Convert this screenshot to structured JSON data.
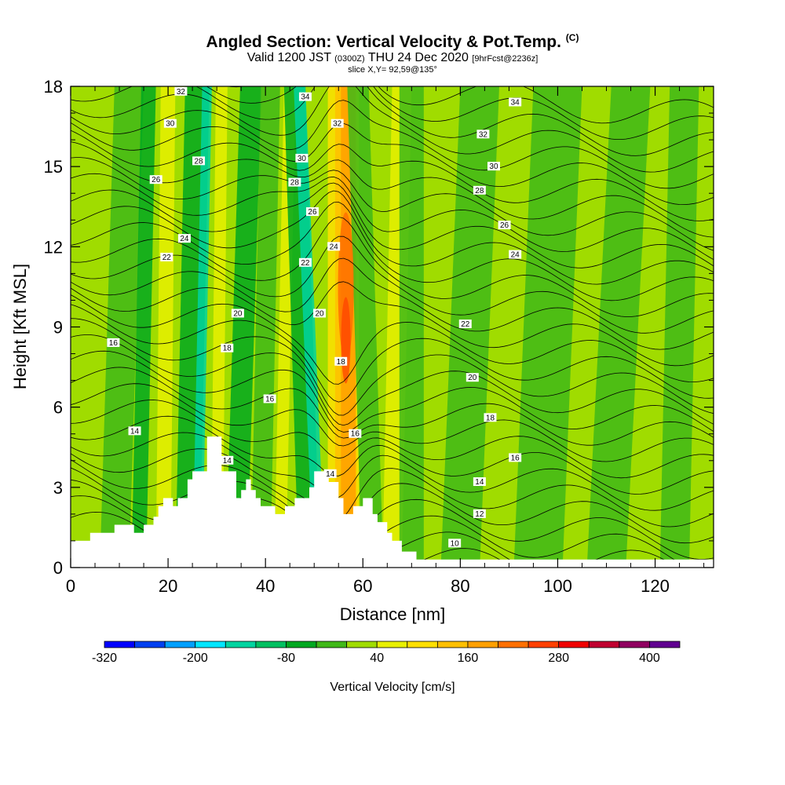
{
  "title": {
    "main": "Angled Section: Vertical Velocity & Pot.Temp.",
    "copyright": "(C)",
    "valid_prefix": "Valid 1200 JST",
    "valid_utc": "(0300Z)",
    "valid_date": "THU 24 Dec 2020",
    "forecast": "[9hrFcst@2236z]",
    "slice": "slice X,Y= 92,59@135°"
  },
  "chart_data": {
    "type": "heatmap",
    "xlabel": "Distance [nm]",
    "ylabel": "Height [Kft MSL]",
    "xlim": [
      0,
      132
    ],
    "ylim": [
      0,
      18
    ],
    "x_ticks": [
      "0",
      "20",
      "40",
      "60",
      "80",
      "100",
      "120"
    ],
    "y_ticks": [
      "0",
      "3",
      "6",
      "9",
      "12",
      "15",
      "18"
    ],
    "x_tick_values": [
      0,
      20,
      40,
      60,
      80,
      100,
      120
    ],
    "y_tick_values": [
      0,
      3,
      6,
      9,
      12,
      15,
      18
    ],
    "colorbar": {
      "label": "Vertical Velocity [cm/s]",
      "tick_labels": [
        "-320",
        "-200",
        "-80",
        "40",
        "160",
        "280",
        "400"
      ],
      "tick_values": [
        -320,
        -200,
        -80,
        40,
        160,
        280,
        400
      ],
      "levels": [
        -320,
        -280,
        -240,
        -200,
        -160,
        -120,
        -80,
        -40,
        0,
        40,
        80,
        120,
        160,
        200,
        240,
        280,
        320,
        360,
        400
      ],
      "colors": [
        "#0000ff",
        "#0040f0",
        "#00a0ff",
        "#00e6ff",
        "#00d4a0",
        "#00c060",
        "#00a820",
        "#40b818",
        "#a0dc00",
        "#e8f000",
        "#ffe000",
        "#ffc000",
        "#ffa000",
        "#ff7000",
        "#ff4000",
        "#f00000",
        "#c00030",
        "#900060",
        "#600090"
      ]
    },
    "terrain_kft": [
      [
        0,
        1
      ],
      [
        4,
        1
      ],
      [
        4,
        1.3
      ],
      [
        9,
        1.3
      ],
      [
        9,
        1.6
      ],
      [
        13,
        1.6
      ],
      [
        13,
        1.3
      ],
      [
        15,
        1.3
      ],
      [
        15,
        1.6
      ],
      [
        17,
        1.6
      ],
      [
        17,
        1.9
      ],
      [
        18,
        1.9
      ],
      [
        18,
        2.3
      ],
      [
        19,
        2.3
      ],
      [
        19,
        2.6
      ],
      [
        21,
        2.6
      ],
      [
        21,
        2.3
      ],
      [
        22,
        2.3
      ],
      [
        22,
        2.6
      ],
      [
        24,
        2.6
      ],
      [
        24,
        3.3
      ],
      [
        25,
        3.3
      ],
      [
        25,
        3.6
      ],
      [
        28,
        3.6
      ],
      [
        28,
        4.9
      ],
      [
        31,
        4.9
      ],
      [
        31,
        3.6
      ],
      [
        34,
        3.6
      ],
      [
        34,
        2.6
      ],
      [
        35,
        2.6
      ],
      [
        35,
        2.9
      ],
      [
        36,
        2.9
      ],
      [
        36,
        3.3
      ],
      [
        37,
        3.3
      ],
      [
        37,
        2.9
      ],
      [
        38,
        2.9
      ],
      [
        38,
        2.6
      ],
      [
        39,
        2.6
      ],
      [
        39,
        2.3
      ],
      [
        42,
        2.3
      ],
      [
        42,
        2.0
      ],
      [
        44,
        2.0
      ],
      [
        44,
        2.3
      ],
      [
        46,
        2.3
      ],
      [
        46,
        2.6
      ],
      [
        49,
        2.6
      ],
      [
        49,
        3.0
      ],
      [
        50,
        3.0
      ],
      [
        50,
        3.6
      ],
      [
        53,
        3.6
      ],
      [
        53,
        3.2
      ],
      [
        55,
        3.2
      ],
      [
        55,
        2.6
      ],
      [
        56,
        2.6
      ],
      [
        56,
        2.0
      ],
      [
        58,
        2.0
      ],
      [
        58,
        2.3
      ],
      [
        60,
        2.3
      ],
      [
        60,
        2.6
      ],
      [
        62,
        2.6
      ],
      [
        62,
        2.0
      ],
      [
        63,
        2.0
      ],
      [
        63,
        1.7
      ],
      [
        65,
        1.7
      ],
      [
        65,
        1.3
      ],
      [
        66,
        1.3
      ],
      [
        66,
        1.0
      ],
      [
        68,
        1.0
      ],
      [
        68,
        0.6
      ],
      [
        71,
        0.6
      ],
      [
        71,
        0.3
      ],
      [
        132,
        0.3
      ]
    ],
    "theta_contours_K": [
      10,
      12,
      14,
      16,
      18,
      20,
      22,
      24,
      26,
      28,
      30,
      32,
      34
    ],
    "contour_labels": [
      "32",
      "30",
      "28",
      "26",
      "24",
      "22",
      "16",
      "20",
      "18",
      "16",
      "14",
      "14",
      "34",
      "32",
      "30",
      "28",
      "26",
      "24",
      "22",
      "20",
      "18",
      "16",
      "14",
      "34",
      "32",
      "30",
      "28",
      "26",
      "24",
      "22",
      "20",
      "18",
      "16",
      "14",
      "12",
      "10"
    ]
  },
  "colors": {
    "background_field": "#a0dc00",
    "terrain": "#ffffff"
  }
}
